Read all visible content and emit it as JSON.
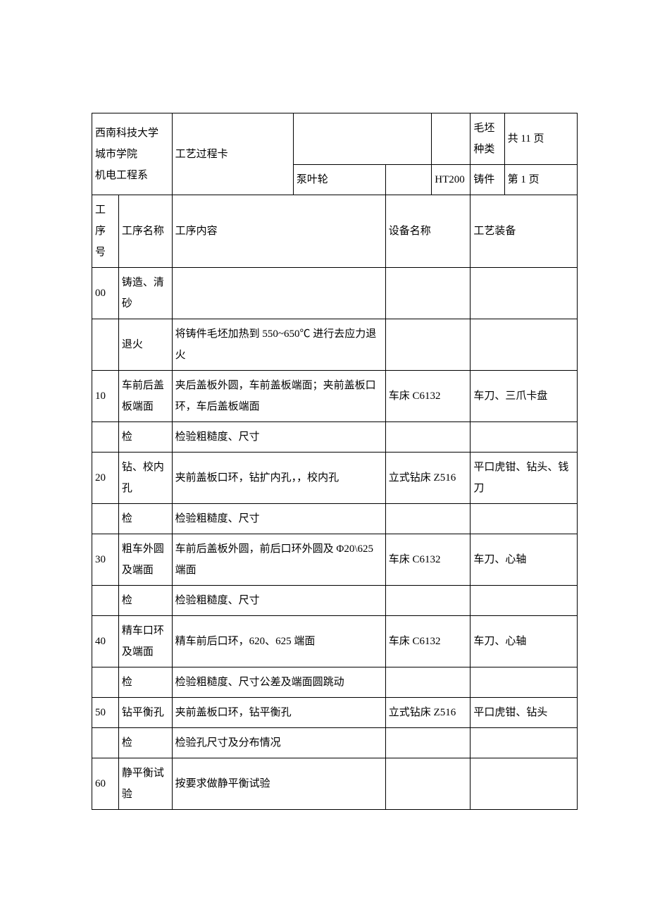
{
  "header": {
    "institution_line1": "西南科技大学城市学院",
    "institution_line2": "机电工程系",
    "card_name": "工艺过程卡",
    "part_name": "泵叶轮",
    "material": "HT200",
    "blank_type_label": "毛坯种类",
    "blank_type_value": "铸件",
    "total_pages": "共 11 页",
    "current_page": "第 1 页"
  },
  "columns": {
    "seq": "工序号",
    "name": "工序名称",
    "content": "工序内容",
    "equipment": "设备名称",
    "tooling": "工艺装备"
  },
  "rows": [
    {
      "seq": "00",
      "name": "铸造、清砂",
      "content": "",
      "equipment": "",
      "tooling": ""
    },
    {
      "seq": "",
      "name": "退火",
      "content": "将铸件毛坯加热到 550~650℃ 进行去应力退火",
      "equipment": "",
      "tooling": ""
    },
    {
      "seq": "10",
      "name": "车前后盖板端面",
      "content": "夹后盖板外圆，车前盖板端面；夹前盖板口环，车后盖板端面",
      "equipment": "车床 C6132",
      "tooling": "车刀、三爪卡盘"
    },
    {
      "seq": "",
      "name": "检",
      "content": "检验粗糙度、尺寸",
      "equipment": "",
      "tooling": ""
    },
    {
      "seq": "20",
      "name": "钻、校内孔",
      "content": "夹前盖板口环，钻扩内孔，，校内孔",
      "equipment": "立式钻床 Z516",
      "tooling": "平口虎钳、钻头、钱刀"
    },
    {
      "seq": "",
      "name": "检",
      "content": "检验粗糙度、尺寸",
      "equipment": "",
      "tooling": ""
    },
    {
      "seq": "30",
      "name": "粗车外圆及端面",
      "content": "车前后盖板外圆，前后口环外圆及 Φ20\\625 端面",
      "equipment": "车床 C6132",
      "tooling": "车刀、心轴"
    },
    {
      "seq": "",
      "name": "检",
      "content": "检验粗糙度、尺寸",
      "equipment": "",
      "tooling": ""
    },
    {
      "seq": "40",
      "name": "精车口环及端面",
      "content": "精车前后口环，620、625 端面",
      "equipment": "车床 C6132",
      "tooling": "车刀、心轴"
    },
    {
      "seq": "",
      "name": "检",
      "content": "检验粗糙度、尺寸公差及端面圆跳动",
      "equipment": "",
      "tooling": ""
    },
    {
      "seq": "50",
      "name": "钻平衡孔",
      "content": "夹前盖板口环，钻平衡孔",
      "equipment": "立式钻床 Z516",
      "tooling": "平口虎钳、钻头"
    },
    {
      "seq": "",
      "name": "检",
      "content": "检验孔尺寸及分布情况",
      "equipment": "",
      "tooling": ""
    },
    {
      "seq": "60",
      "name": "静平衡试验",
      "content": "按要求做静平衡试验",
      "equipment": "",
      "tooling": ""
    }
  ]
}
